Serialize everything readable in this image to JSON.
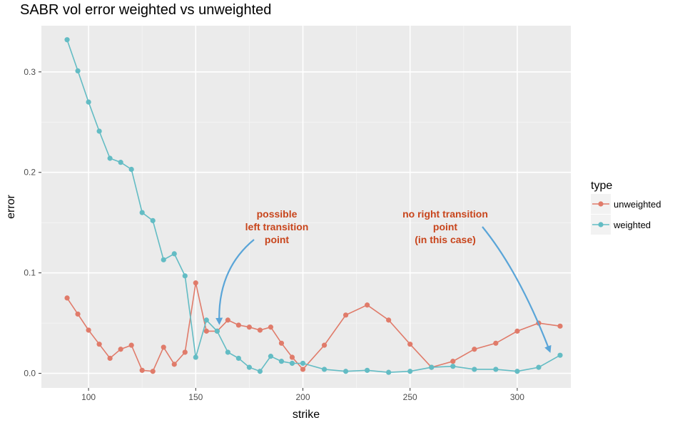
{
  "chart_data": {
    "type": "line",
    "title": "SABR vol error weighted vs unweighted",
    "xlabel": "strike",
    "ylabel": "error",
    "xlim": [
      78,
      325
    ],
    "ylim": [
      -0.0145,
      0.346
    ],
    "x_ticks": [
      100,
      150,
      200,
      250,
      300
    ],
    "y_ticks": [
      0.0,
      0.1,
      0.2,
      0.3
    ],
    "x_tick_labels": [
      "100",
      "150",
      "200",
      "250",
      "300"
    ],
    "y_tick_labels": [
      "0.0",
      "0.1",
      "0.2",
      "0.3"
    ],
    "grid": true,
    "legend": {
      "title": "type",
      "placement": "right"
    },
    "x": [
      90,
      95,
      100,
      105,
      110,
      115,
      120,
      125,
      130,
      135,
      140,
      145,
      150,
      155,
      160,
      165,
      170,
      175,
      180,
      185,
      190,
      195,
      200,
      210,
      220,
      230,
      240,
      250,
      260,
      270,
      280,
      290,
      300,
      310,
      320
    ],
    "series": [
      {
        "name": "unweighted",
        "color": "#e07b6a",
        "values": [
          0.075,
          0.059,
          0.043,
          0.029,
          0.015,
          0.024,
          0.028,
          0.003,
          0.002,
          0.026,
          0.009,
          0.021,
          0.09,
          0.042,
          0.042,
          0.053,
          0.048,
          0.046,
          0.043,
          0.046,
          0.03,
          0.016,
          0.004,
          0.028,
          0.058,
          0.068,
          0.053,
          0.029,
          0.006,
          0.012,
          0.024,
          0.03,
          0.042,
          0.05,
          0.047
        ]
      },
      {
        "name": "weighted",
        "color": "#63bcc4",
        "values": [
          0.332,
          0.301,
          0.27,
          0.241,
          0.214,
          0.21,
          0.203,
          0.16,
          0.152,
          0.113,
          0.119,
          0.097,
          0.016,
          0.053,
          0.042,
          0.021,
          0.015,
          0.006,
          0.002,
          0.017,
          0.012,
          0.01,
          0.01,
          0.004,
          0.002,
          0.003,
          0.001,
          0.002,
          0.006,
          0.007,
          0.004,
          0.004,
          0.002,
          0.006,
          0.018
        ]
      }
    ],
    "annotations": [
      {
        "lines": [
          "possible",
          "left transition",
          "point"
        ],
        "color": "#c8451c",
        "arrow_color": "#5aa5d8",
        "arrow_target": [
          161,
          0.051
        ]
      },
      {
        "lines": [
          "no right transition",
          "point",
          "(in this case)"
        ],
        "color": "#c8451c",
        "arrow_color": "#5aa5d8",
        "arrow_target": [
          315,
          0.023
        ]
      }
    ]
  }
}
